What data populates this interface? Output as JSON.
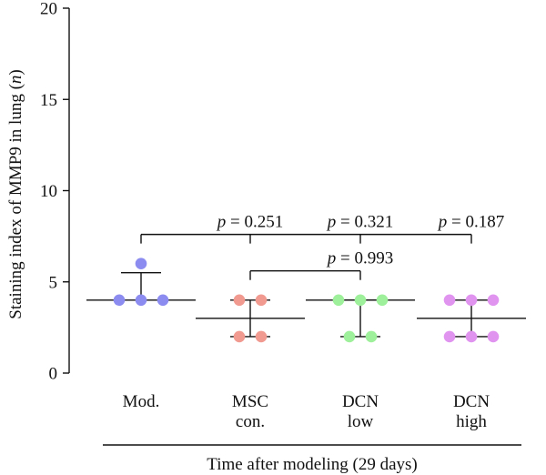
{
  "chart_data": {
    "type": "scatter",
    "ylabel_parts": [
      "Staining index of MMP9 in lung (",
      "n",
      ")"
    ],
    "xlabel": "Time after modeling (29 days)",
    "ylim": [
      0,
      20
    ],
    "yticks": [
      "0",
      "5",
      "10",
      "15",
      "20"
    ],
    "grid": false,
    "groups": [
      {
        "label": [
          "Mod."
        ],
        "color": "#8c8cf0",
        "values": [
          4,
          4,
          4,
          6
        ],
        "center": 4,
        "err_low": 4,
        "err_high": 5.5
      },
      {
        "label": [
          "MSC",
          "con."
        ],
        "color": "#f09a90",
        "values": [
          2,
          2,
          4,
          4
        ],
        "center": 3,
        "err_low": 2,
        "err_high": 4
      },
      {
        "label": [
          "DCN",
          "low"
        ],
        "color": "#9ef09a",
        "values": [
          2,
          2,
          4,
          4,
          4
        ],
        "center": 4,
        "err_low": 2,
        "err_high": 4
      },
      {
        "label": [
          "DCN",
          "high"
        ],
        "color": "#e094f0",
        "values": [
          2,
          2,
          2,
          4,
          4,
          4
        ],
        "center": 3,
        "err_low": 2,
        "err_high": 4
      }
    ],
    "comparisons": [
      {
        "from": 0,
        "to": 3,
        "y": 7.6,
        "ticks": [
          0,
          1,
          2,
          3
        ],
        "labels": [
          {
            "group": 1,
            "text": "p = 0.251"
          },
          {
            "group": 2,
            "text": "p = 0.321"
          },
          {
            "group": 3,
            "text": "p = 0.187"
          }
        ]
      },
      {
        "from": 1,
        "to": 2,
        "y": 5.6,
        "ticks": [
          1,
          2
        ],
        "labels": [
          {
            "group": 2,
            "text": "p = 0.993"
          }
        ]
      }
    ]
  }
}
